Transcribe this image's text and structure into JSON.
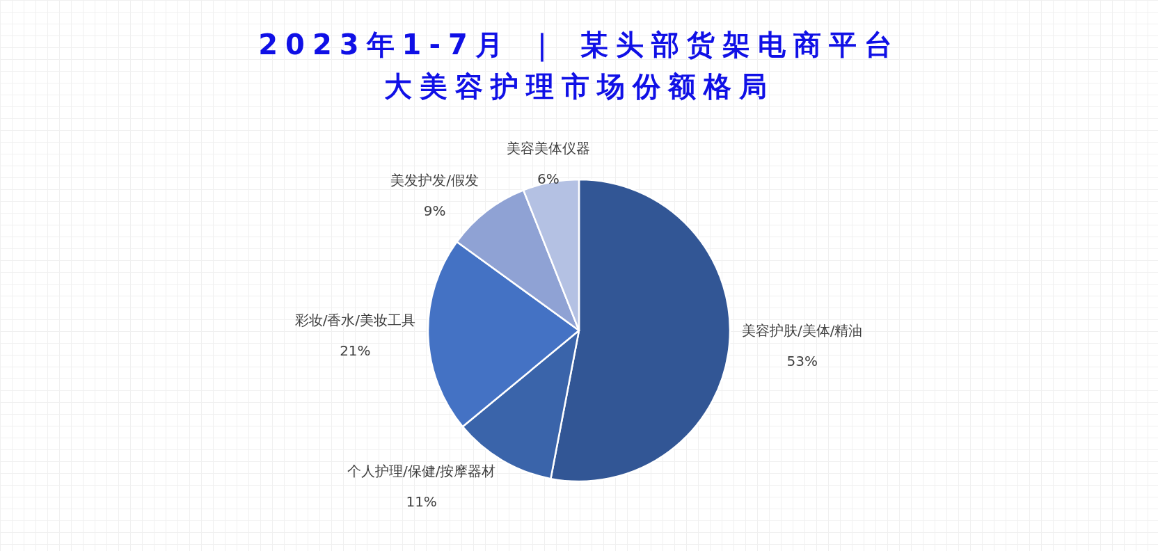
{
  "chart_data": {
    "type": "pie",
    "title": "2023年1-7月 ｜ 某头部货架电商平台",
    "subtitle": "大美容护理市场份额格局",
    "categories": [
      "美容护肤/美体/精油",
      "个人护理/保健/按摩器材",
      "彩妆/香水/美妆工具",
      "美发护发/假发",
      "美容美体仪器"
    ],
    "values": [
      53,
      11,
      21,
      9,
      6
    ],
    "colors": [
      "#325695",
      "#3a64aa",
      "#4472c4",
      "#8fa2d4",
      "#b4c1e3"
    ],
    "value_labels": [
      "53%",
      "11%",
      "21%",
      "9%",
      "6%"
    ]
  }
}
